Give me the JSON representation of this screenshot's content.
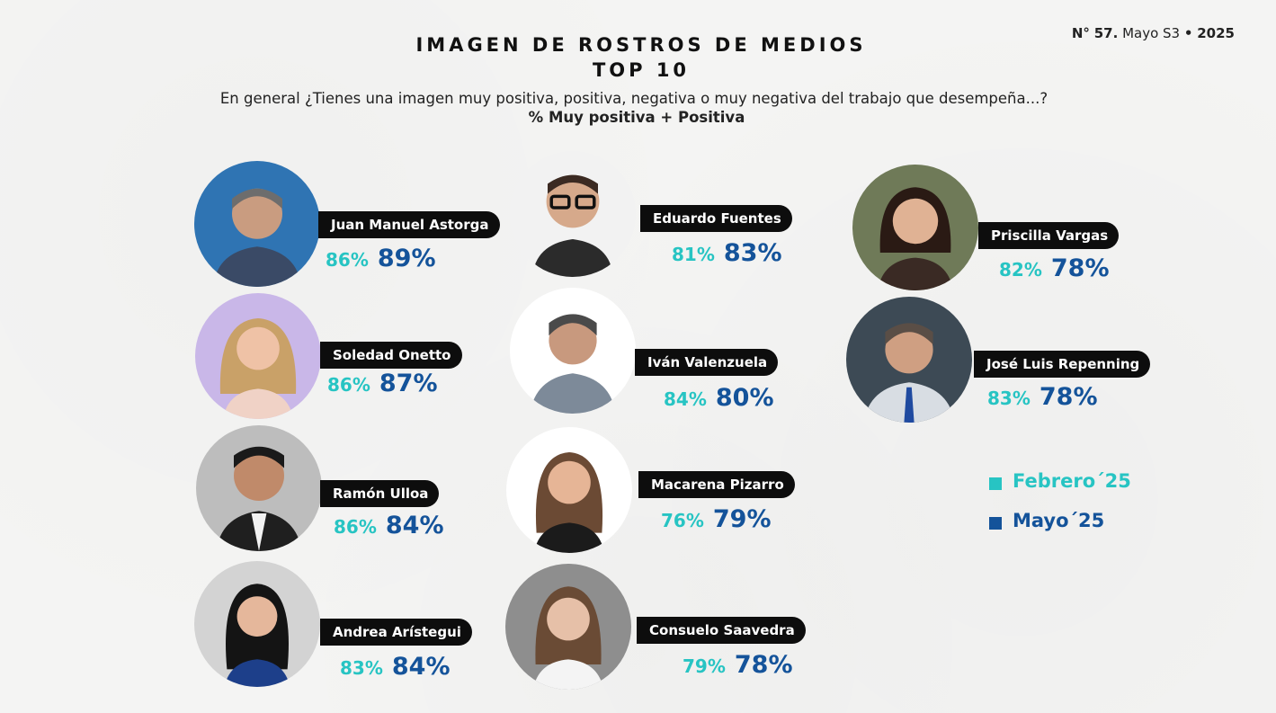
{
  "header": {
    "issue_prefix": "N°",
    "issue_number": "57.",
    "issue_period": "Mayo S3",
    "issue_sep": "•",
    "issue_year": "2025"
  },
  "title": {
    "line1": "IMAGEN DE ROSTROS DE MEDIOS",
    "line2": "TOP 10",
    "question": "En general ¿Tienes una imagen muy positiva, positiva, negativa o muy negativa del trabajo que desempeña...?",
    "metric": "% Muy positiva + Positiva"
  },
  "legend": {
    "feb_label": "Febrero´25",
    "may_label": "Mayo´25",
    "feb_color": "#27c4c3",
    "may_color": "#14539a"
  },
  "people": [
    {
      "name": "Juan Manuel Astorga",
      "feb": "86%",
      "may": "89%"
    },
    {
      "name": "Eduardo Fuentes",
      "feb": "81%",
      "may": "83%"
    },
    {
      "name": "Priscilla Vargas",
      "feb": "82%",
      "may": "78%"
    },
    {
      "name": "Soledad Onetto",
      "feb": "86%",
      "may": "87%"
    },
    {
      "name": "Iván Valenzuela",
      "feb": "84%",
      "may": "80%"
    },
    {
      "name": "José Luis Repenning",
      "feb": "83%",
      "may": "78%"
    },
    {
      "name": "Ramón Ulloa",
      "feb": "86%",
      "may": "84%"
    },
    {
      "name": "Macarena Pizarro",
      "feb": "76%",
      "may": "79%"
    },
    {
      "name": "Andrea Arístegui",
      "feb": "83%",
      "may": "84%"
    },
    {
      "name": "Consuelo Saavedra",
      "feb": "79%",
      "may": "78%"
    }
  ]
}
